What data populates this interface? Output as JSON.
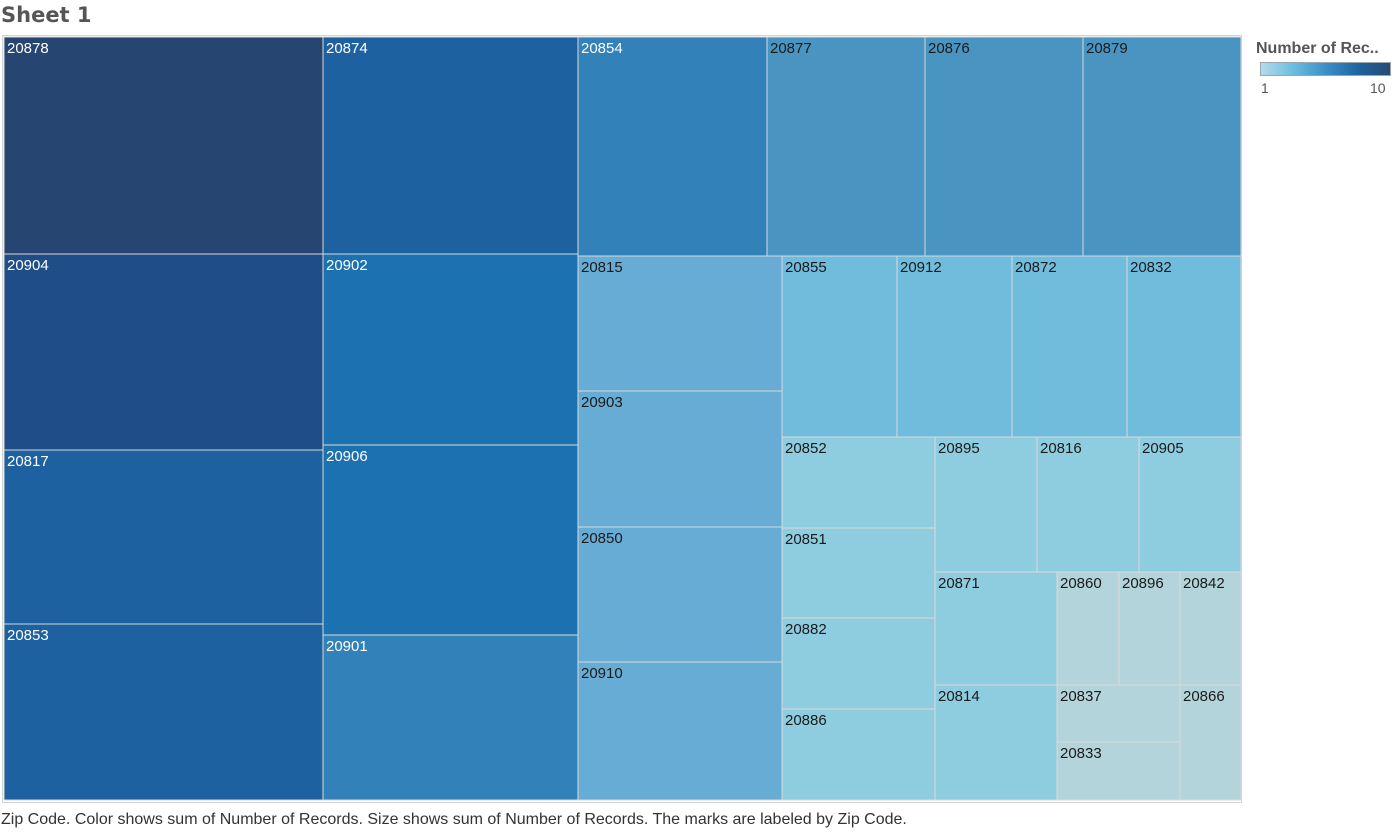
{
  "sheet": {
    "title": "Sheet 1"
  },
  "legend": {
    "title": "Number of Rec..",
    "min_label": "1",
    "max_label": "10"
  },
  "caption": "Zip Code.  Color shows sum of Number of Records.  Size shows sum of Number of Records.  The marks are labeled by Zip Code.",
  "colors": {
    "scale": [
      "#b3d4da",
      "#8ecde0",
      "#70bcdd",
      "#67acd4",
      "#4a94c2",
      "#3381b9",
      "#1c72b1",
      "#1d61a0",
      "#1e4d87",
      "#264571"
    ],
    "border": "#d9d9d9",
    "label_dark": "#1a1a1a",
    "label_light": "#ffffff"
  },
  "chart_data": {
    "type": "treemap",
    "title": "Sheet 1",
    "size_measure": "Number of Records",
    "color_measure": "Number of Records",
    "label_field": "Zip Code",
    "color_range": [
      1,
      10
    ],
    "items": [
      {
        "zip": "20878",
        "value": 10
      },
      {
        "zip": "20904",
        "value": 9
      },
      {
        "zip": "20817",
        "value": 8
      },
      {
        "zip": "20853",
        "value": 8
      },
      {
        "zip": "20874",
        "value": 8
      },
      {
        "zip": "20902",
        "value": 7
      },
      {
        "zip": "20906",
        "value": 7
      },
      {
        "zip": "20901",
        "value": 6
      },
      {
        "zip": "20854",
        "value": 6
      },
      {
        "zip": "20877",
        "value": 5
      },
      {
        "zip": "20876",
        "value": 5
      },
      {
        "zip": "20879",
        "value": 5
      },
      {
        "zip": "20815",
        "value": 4
      },
      {
        "zip": "20903",
        "value": 4
      },
      {
        "zip": "20850",
        "value": 4
      },
      {
        "zip": "20910",
        "value": 4
      },
      {
        "zip": "20855",
        "value": 3
      },
      {
        "zip": "20912",
        "value": 3
      },
      {
        "zip": "20872",
        "value": 3
      },
      {
        "zip": "20832",
        "value": 3
      },
      {
        "zip": "20852",
        "value": 2
      },
      {
        "zip": "20851",
        "value": 2
      },
      {
        "zip": "20882",
        "value": 2
      },
      {
        "zip": "20886",
        "value": 2
      },
      {
        "zip": "20895",
        "value": 2
      },
      {
        "zip": "20816",
        "value": 2
      },
      {
        "zip": "20905",
        "value": 2
      },
      {
        "zip": "20871",
        "value": 2
      },
      {
        "zip": "20814",
        "value": 2
      },
      {
        "zip": "20860",
        "value": 1
      },
      {
        "zip": "20896",
        "value": 1
      },
      {
        "zip": "20842",
        "value": 1
      },
      {
        "zip": "20837",
        "value": 1
      },
      {
        "zip": "20833",
        "value": 1
      },
      {
        "zip": "20866",
        "value": 1
      }
    ]
  }
}
